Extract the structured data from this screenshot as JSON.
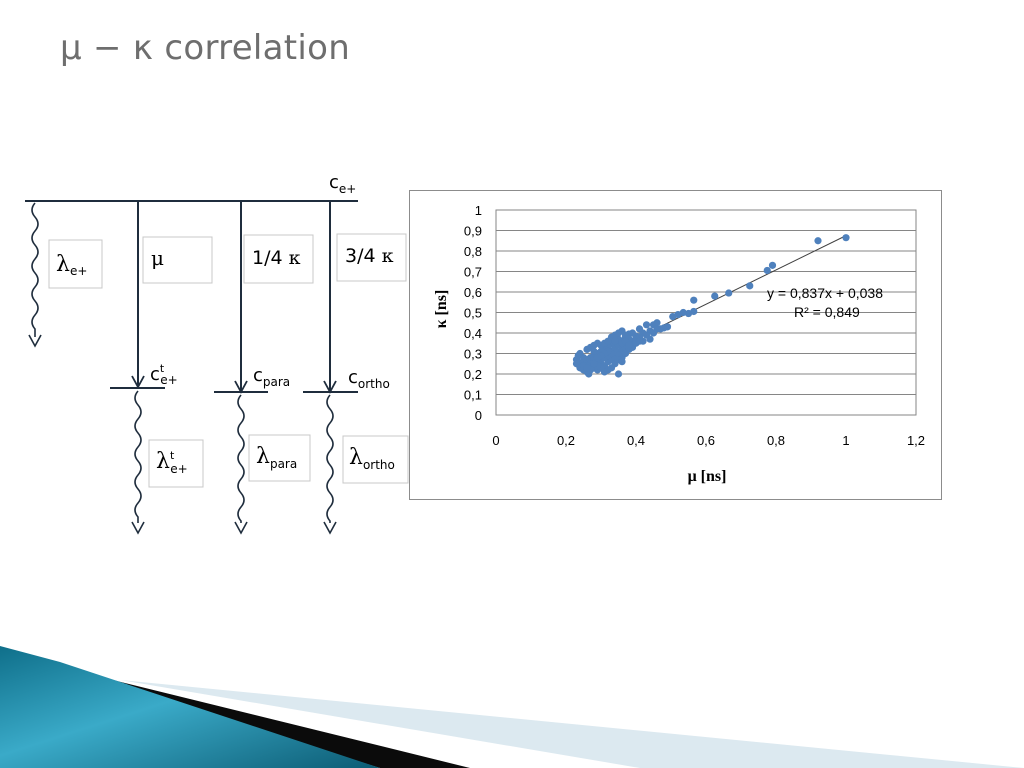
{
  "slide": {
    "title": "μ − κ correlation"
  },
  "diagram": {
    "top_label": {
      "base": "c",
      "sub": "e+"
    },
    "boxes": [
      {
        "key": "lambda-e-plus",
        "greek": "λ",
        "sub": "e+",
        "sup": ""
      },
      {
        "key": "mu",
        "greek": "μ",
        "sub": "",
        "sup": ""
      },
      {
        "key": "quarter-kappa",
        "text": "1/4 ",
        "greek": "κ"
      },
      {
        "key": "three-quarter-kappa",
        "text": "3/4 ",
        "greek": "κ"
      },
      {
        "key": "lambda-t-e-plus",
        "greek": "λ",
        "sub": "e+",
        "sup": "t"
      },
      {
        "key": "lambda-para",
        "greek": "λ",
        "sub": "para",
        "sup": ""
      },
      {
        "key": "lambda-ortho",
        "greek": "λ",
        "sub": "ortho",
        "sup": ""
      }
    ],
    "level_labels": [
      {
        "key": "c-t-e-plus",
        "base": "c",
        "sub": "e+",
        "sup": "t"
      },
      {
        "key": "c-para",
        "base": "c",
        "sub": "para",
        "sup": ""
      },
      {
        "key": "c-ortho",
        "base": "c",
        "sub": "ortho",
        "sup": ""
      }
    ]
  },
  "chart_data": {
    "type": "scatter",
    "xlabel": "μ [ns]",
    "ylabel": "κ [ns]",
    "xlim": [
      0,
      1.2
    ],
    "ylim": [
      0,
      1
    ],
    "x_ticks": [
      "0",
      "0,2",
      "0,4",
      "0,6",
      "0,8",
      "1",
      "1,2"
    ],
    "y_ticks": [
      "0",
      "0,1",
      "0,2",
      "0,3",
      "0,4",
      "0,5",
      "0,6",
      "0,7",
      "0,8",
      "0,9",
      "1"
    ],
    "grid": "horizontal",
    "marker_color": "#4f81bd",
    "trendline": {
      "slope": 0.837,
      "intercept": 0.038,
      "x_range": [
        0.23,
        1.0
      ],
      "color": "#404040"
    },
    "equation_label": "y = 0,837x + 0,038",
    "r2_label": "R² = 0,849",
    "points": [
      [
        1.0,
        0.865
      ],
      [
        0.92,
        0.85
      ],
      [
        0.79,
        0.73
      ],
      [
        0.775,
        0.705
      ],
      [
        0.725,
        0.63
      ],
      [
        0.665,
        0.595
      ],
      [
        0.625,
        0.58
      ],
      [
        0.565,
        0.56
      ],
      [
        0.565,
        0.505
      ],
      [
        0.55,
        0.495
      ],
      [
        0.535,
        0.5
      ],
      [
        0.52,
        0.49
      ],
      [
        0.505,
        0.48
      ],
      [
        0.49,
        0.43
      ],
      [
        0.48,
        0.425
      ],
      [
        0.46,
        0.45
      ],
      [
        0.45,
        0.44
      ],
      [
        0.47,
        0.42
      ],
      [
        0.44,
        0.41
      ],
      [
        0.43,
        0.44
      ],
      [
        0.42,
        0.4
      ],
      [
        0.41,
        0.42
      ],
      [
        0.4,
        0.385
      ],
      [
        0.39,
        0.4
      ],
      [
        0.38,
        0.395
      ],
      [
        0.37,
        0.38
      ],
      [
        0.36,
        0.36
      ],
      [
        0.35,
        0.37
      ],
      [
        0.34,
        0.35
      ],
      [
        0.33,
        0.345
      ],
      [
        0.32,
        0.33
      ],
      [
        0.31,
        0.325
      ],
      [
        0.3,
        0.31
      ],
      [
        0.29,
        0.3
      ],
      [
        0.28,
        0.29
      ],
      [
        0.27,
        0.28
      ],
      [
        0.26,
        0.27
      ],
      [
        0.25,
        0.26
      ],
      [
        0.24,
        0.255
      ],
      [
        0.23,
        0.27
      ],
      [
        0.235,
        0.29
      ],
      [
        0.25,
        0.22
      ],
      [
        0.26,
        0.21
      ],
      [
        0.265,
        0.2
      ],
      [
        0.27,
        0.24
      ],
      [
        0.28,
        0.23
      ],
      [
        0.29,
        0.22
      ],
      [
        0.3,
        0.25
      ],
      [
        0.31,
        0.24
      ],
      [
        0.32,
        0.26
      ],
      [
        0.33,
        0.27
      ],
      [
        0.34,
        0.28
      ],
      [
        0.35,
        0.3
      ],
      [
        0.36,
        0.32
      ],
      [
        0.37,
        0.33
      ],
      [
        0.38,
        0.35
      ],
      [
        0.39,
        0.36
      ],
      [
        0.4,
        0.37
      ],
      [
        0.41,
        0.38
      ],
      [
        0.42,
        0.36
      ],
      [
        0.35,
        0.2
      ],
      [
        0.3,
        0.34
      ],
      [
        0.31,
        0.35
      ],
      [
        0.32,
        0.36
      ],
      [
        0.33,
        0.31
      ],
      [
        0.34,
        0.32
      ],
      [
        0.26,
        0.32
      ],
      [
        0.27,
        0.33
      ],
      [
        0.28,
        0.31
      ],
      [
        0.29,
        0.35
      ],
      [
        0.3,
        0.27
      ],
      [
        0.31,
        0.28
      ],
      [
        0.32,
        0.29
      ],
      [
        0.33,
        0.38
      ],
      [
        0.34,
        0.39
      ],
      [
        0.35,
        0.4
      ],
      [
        0.36,
        0.41
      ],
      [
        0.37,
        0.39
      ],
      [
        0.38,
        0.37
      ],
      [
        0.29,
        0.26
      ],
      [
        0.28,
        0.27
      ],
      [
        0.27,
        0.25
      ],
      [
        0.26,
        0.24
      ],
      [
        0.25,
        0.28
      ],
      [
        0.24,
        0.3
      ],
      [
        0.23,
        0.25
      ],
      [
        0.24,
        0.23
      ],
      [
        0.25,
        0.24
      ],
      [
        0.36,
        0.28
      ],
      [
        0.37,
        0.3
      ],
      [
        0.38,
        0.32
      ],
      [
        0.39,
        0.33
      ],
      [
        0.4,
        0.35
      ],
      [
        0.41,
        0.36
      ],
      [
        0.43,
        0.39
      ],
      [
        0.44,
        0.37
      ],
      [
        0.45,
        0.4
      ],
      [
        0.46,
        0.42
      ],
      [
        0.34,
        0.25
      ],
      [
        0.33,
        0.23
      ],
      [
        0.32,
        0.22
      ],
      [
        0.31,
        0.21
      ],
      [
        0.3,
        0.23
      ],
      [
        0.29,
        0.24
      ],
      [
        0.28,
        0.25
      ],
      [
        0.27,
        0.22
      ],
      [
        0.26,
        0.23
      ],
      [
        0.35,
        0.27
      ],
      [
        0.36,
        0.26
      ],
      [
        0.33,
        0.3
      ],
      [
        0.32,
        0.31
      ],
      [
        0.31,
        0.3
      ],
      [
        0.3,
        0.29
      ],
      [
        0.29,
        0.28
      ],
      [
        0.28,
        0.34
      ],
      [
        0.35,
        0.34
      ],
      [
        0.34,
        0.36
      ],
      [
        0.36,
        0.35
      ],
      [
        0.37,
        0.36
      ],
      [
        0.38,
        0.34
      ]
    ]
  }
}
